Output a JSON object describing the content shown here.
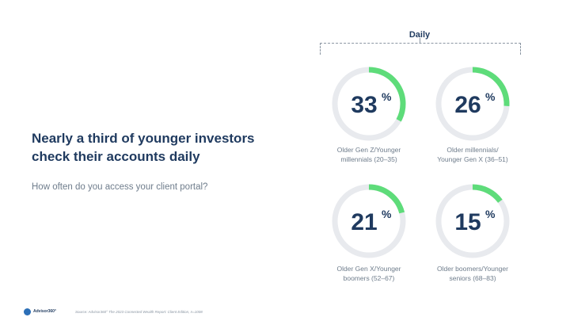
{
  "headline": "Nearly a third of younger investors check their accounts daily",
  "subheadline": "How often do you access your client portal?",
  "bracket_label": "Daily",
  "footer": {
    "logo_text": "Advisor360°",
    "source": "Source: Advisor360° The 2023 Connected Wealth Report: Client Edition, n=1008"
  },
  "colors": {
    "accent": "#5edc7a",
    "track": "#e8eaee",
    "value_text": "#1f3a5f",
    "label_text": "#6f7d8c"
  },
  "chart_data": {
    "type": "donut",
    "unit": "%",
    "max": 100,
    "items": [
      {
        "label_line1": "Older Gen Z/Younger",
        "label_line2": "millennials (20–35)",
        "value": 33
      },
      {
        "label_line1": "Older millennials/",
        "label_line2": "Younger Gen X (36–51)",
        "value": 26
      },
      {
        "label_line1": "Older Gen X/Younger",
        "label_line2": "boomers (52–67)",
        "value": 21
      },
      {
        "label_line1": "Older boomers/Younger",
        "label_line2": "seniors (68–83)",
        "value": 15
      }
    ]
  }
}
